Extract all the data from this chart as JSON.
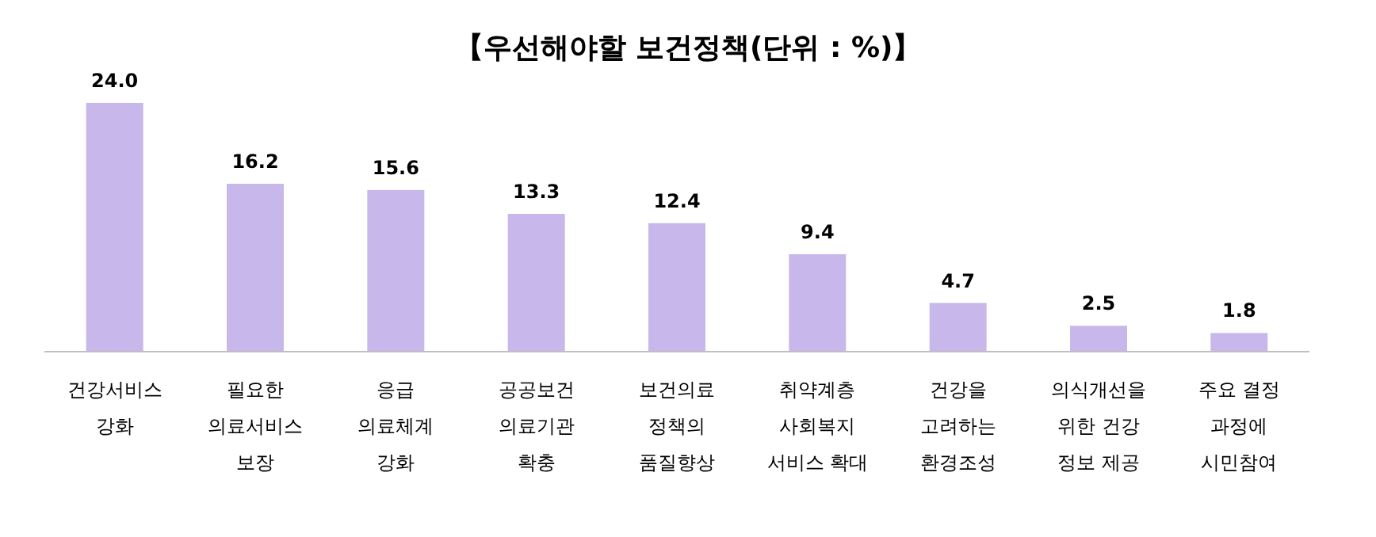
{
  "chart_data": {
    "type": "bar",
    "title": "【우선해야할 보건정책(단위 : %)】",
    "categories": [
      "건강서비스\n강화",
      "필요한\n의료서비스\n보장",
      "응급\n의료체계\n강화",
      "공공보건\n의료기관\n확충",
      "보건의료\n정책의\n품질향상",
      "취약계층\n사회복지\n서비스 확대",
      "건강을\n고려하는\n환경조성",
      "의식개선을\n위한 건강\n정보 제공",
      "주요 결정\n과정에\n시민참여"
    ],
    "values": [
      24.0,
      16.2,
      15.6,
      13.3,
      12.4,
      9.4,
      4.7,
      2.5,
      1.8
    ],
    "value_labels": [
      "24.0",
      "16.2",
      "15.6",
      "13.3",
      "12.4",
      "9.4",
      "4.7",
      "2.5",
      "1.8"
    ],
    "color": "#c8b7ea"
  }
}
